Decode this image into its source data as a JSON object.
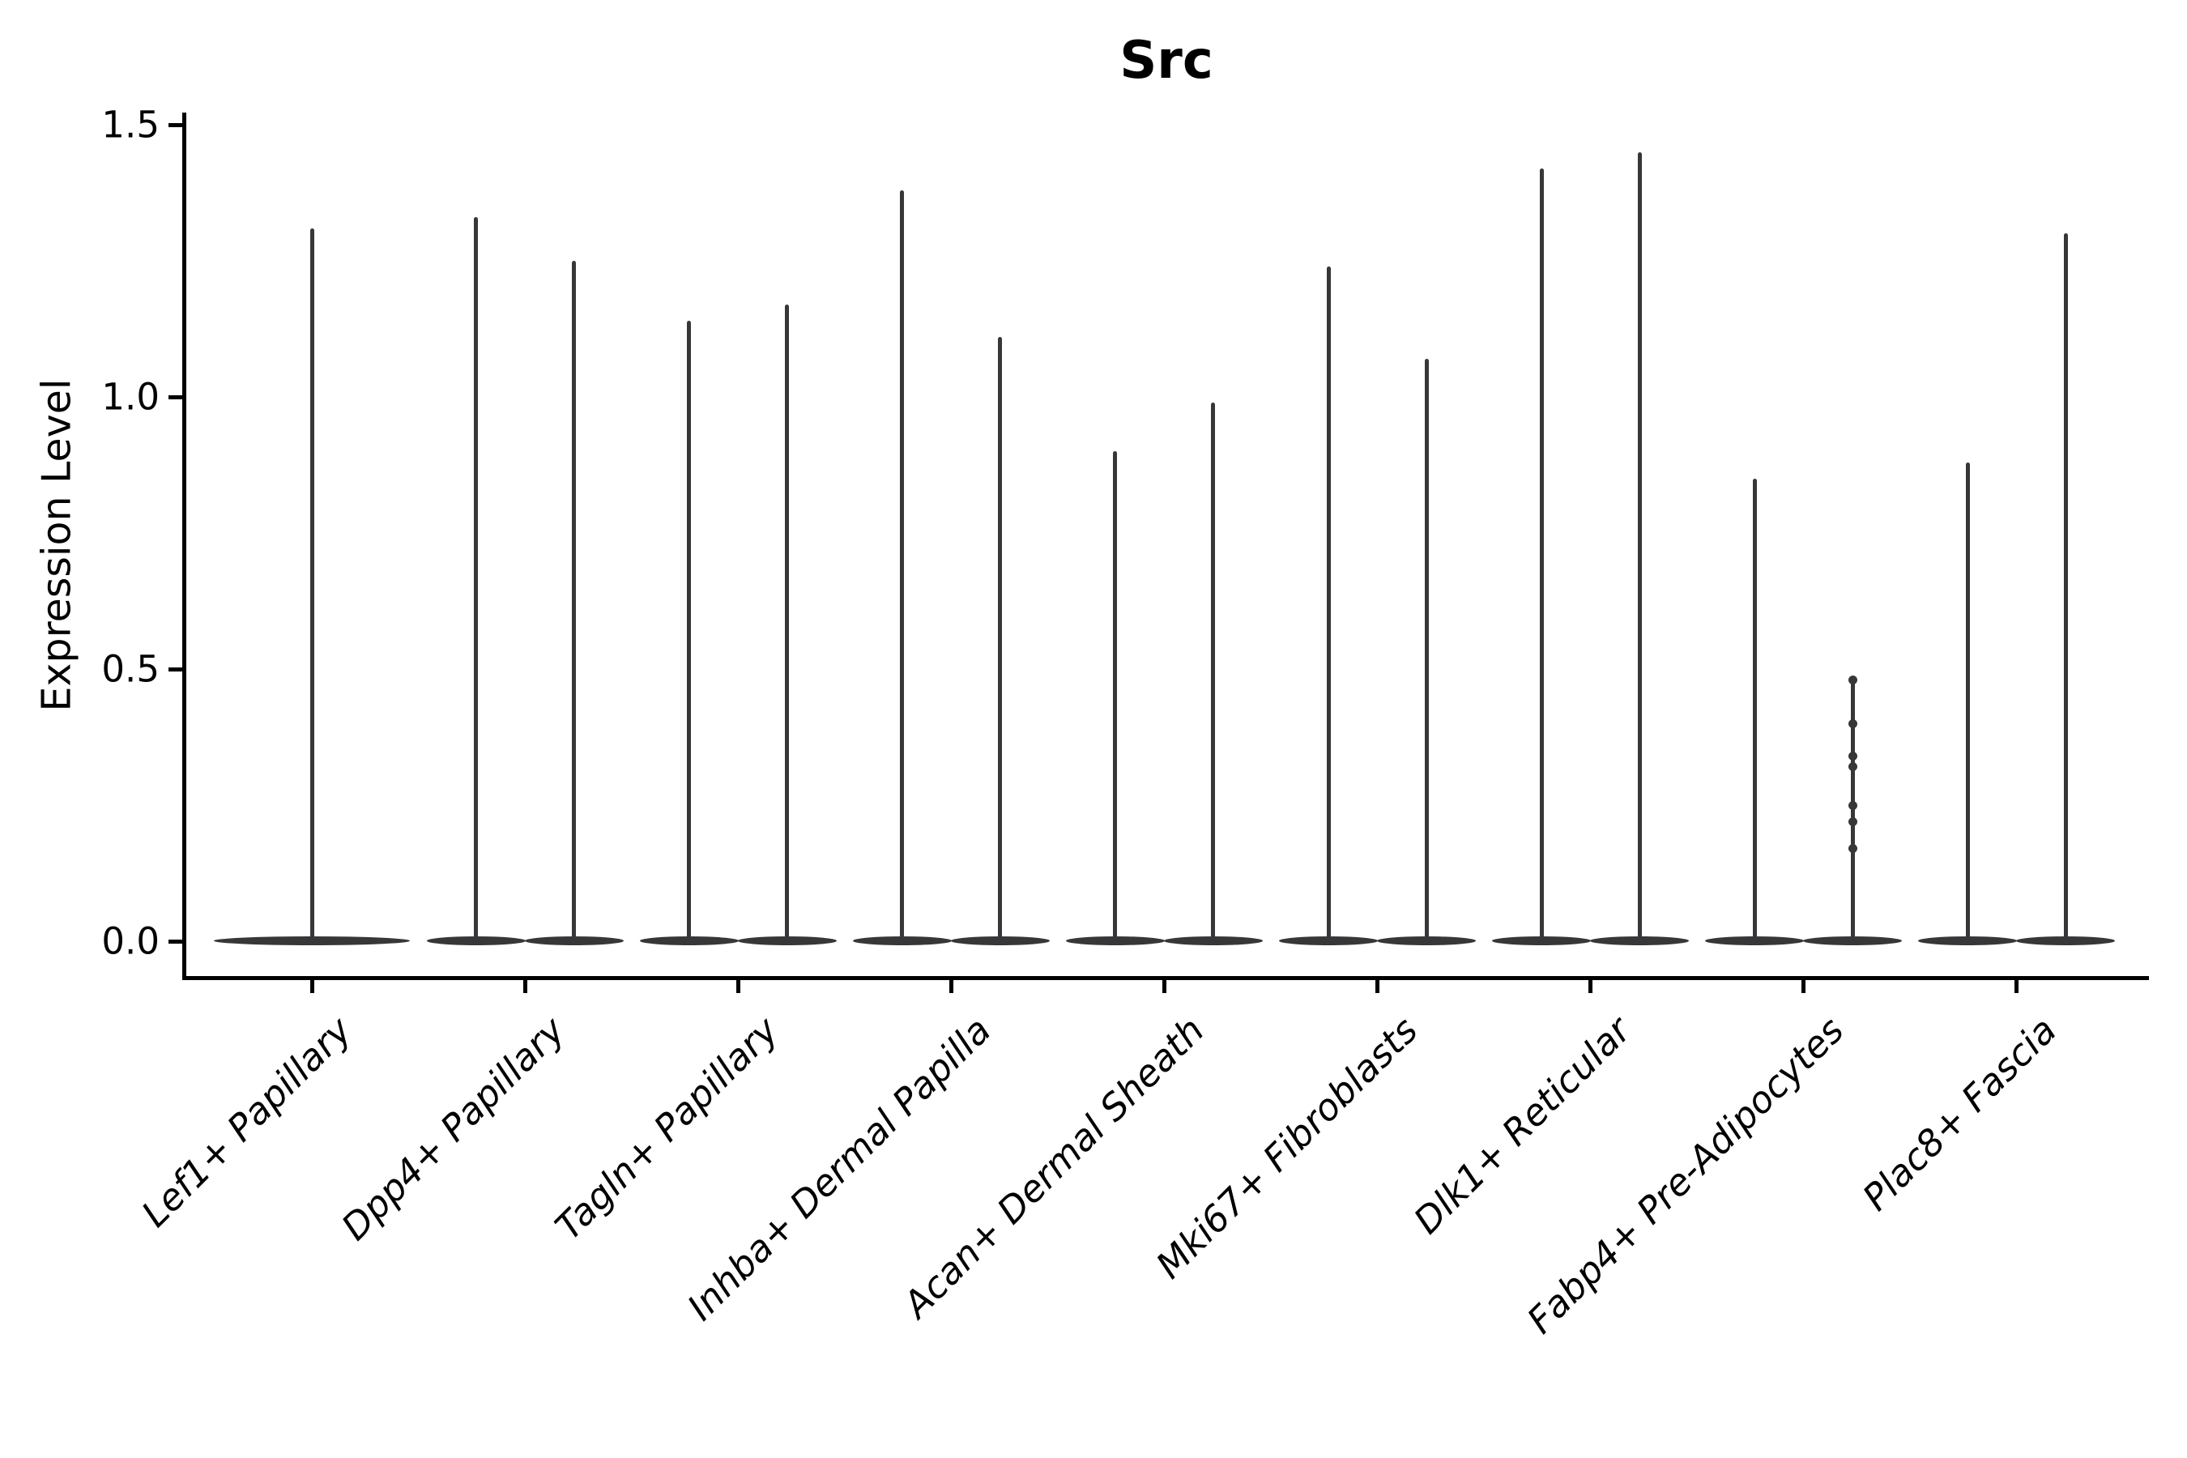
{
  "title": "Src",
  "ylabel": "Expression Level",
  "colors": {
    "violin": "#37373a",
    "axis": "#000000",
    "background": "#ffffff"
  },
  "chart_data": {
    "type": "violin",
    "title": "Src",
    "xlabel": "",
    "ylabel": "Expression Level",
    "ylim": [
      0.0,
      1.55
    ],
    "yticks": [
      0.0,
      0.5,
      1.0,
      1.5
    ],
    "ytick_labels": [
      "0.0",
      "0.5",
      "1.0",
      "1.5"
    ],
    "grid": false,
    "legend": "none",
    "categories": [
      "Lef1+ Papillary",
      "Dpp4+ Papillary",
      "Tagln+ Papillary",
      "Inhba+ Dermal Papilla",
      "Acan+ Dermal Sheath",
      "Mki67+ Fibroblasts",
      "Dlk1+ Reticular",
      "Fabp4+ Pre-Adipocytes",
      "Plac8+ Fascia"
    ],
    "description": "Violin plot of Src expression per fibroblast cluster; each violin is an extremely narrow spike: nearly all cells at expression 0 (wide flat base on the baseline) with a thin density spike up to the maximum expression. Most categories contain two side-by-side violins (two groups, no legend shown); the first category has a single centered violin.",
    "violins": [
      {
        "category": "Lef1+ Papillary",
        "components": [
          {
            "pos": "center",
            "max": 1.31,
            "bulk_at": 0.0
          }
        ]
      },
      {
        "category": "Dpp4+ Papillary",
        "components": [
          {
            "pos": "left",
            "max": 1.33,
            "bulk_at": 0.0
          },
          {
            "pos": "right",
            "max": 1.25,
            "bulk_at": 0.0
          }
        ]
      },
      {
        "category": "Tagln+ Papillary",
        "components": [
          {
            "pos": "left",
            "max": 1.14,
            "bulk_at": 0.0
          },
          {
            "pos": "right",
            "max": 1.17,
            "bulk_at": 0.0
          }
        ]
      },
      {
        "category": "Inhba+ Dermal Papilla",
        "components": [
          {
            "pos": "left",
            "max": 1.38,
            "bulk_at": 0.0
          },
          {
            "pos": "right",
            "max": 1.11,
            "bulk_at": 0.0
          }
        ]
      },
      {
        "category": "Acan+ Dermal Sheath",
        "components": [
          {
            "pos": "left",
            "max": 0.9,
            "bulk_at": 0.0
          },
          {
            "pos": "right",
            "max": 0.99,
            "bulk_at": 0.0
          }
        ]
      },
      {
        "category": "Mki67+ Fibroblasts",
        "components": [
          {
            "pos": "left",
            "max": 1.24,
            "bulk_at": 0.0
          },
          {
            "pos": "right",
            "max": 1.07,
            "bulk_at": 0.0
          }
        ]
      },
      {
        "category": "Dlk1+ Reticular",
        "components": [
          {
            "pos": "left",
            "max": 1.42,
            "bulk_at": 0.0
          },
          {
            "pos": "right",
            "max": 1.45,
            "bulk_at": 0.0
          }
        ]
      },
      {
        "category": "Fabp4+ Pre-Adipocytes",
        "components": [
          {
            "pos": "left",
            "max": 0.85,
            "bulk_at": 0.0
          },
          {
            "pos": "right",
            "max": 0.48,
            "bulk_at": 0.0,
            "points": [
              0.48,
              0.4,
              0.34,
              0.32,
              0.25,
              0.22,
              0.17
            ]
          }
        ]
      },
      {
        "category": "Plac8+ Fascia",
        "components": [
          {
            "pos": "left",
            "max": 0.88,
            "bulk_at": 0.0
          },
          {
            "pos": "right",
            "max": 1.3,
            "bulk_at": 0.0
          }
        ]
      }
    ]
  }
}
